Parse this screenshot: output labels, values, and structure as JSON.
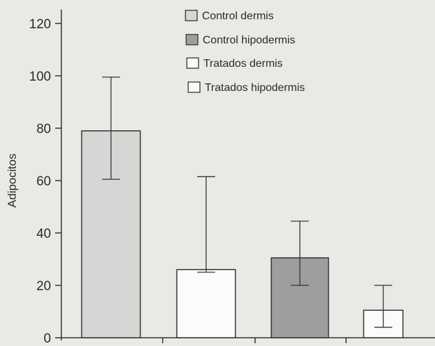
{
  "chart_data": {
    "type": "bar",
    "ylabel": "Adipocitos",
    "ylim": [
      0,
      120
    ],
    "yticks": [
      0,
      20,
      40,
      60,
      80,
      100,
      120
    ],
    "grid": false,
    "legend_position": "top-right",
    "series": [
      {
        "name": "Control dermis",
        "value": 79,
        "error_low": 60.5,
        "error_high": 99.5,
        "fill": "#d6d6d4"
      },
      {
        "name": "Tratados dermis",
        "value": 26,
        "error_low": 25,
        "error_high": 61.5,
        "fill": "#fbfbfb"
      },
      {
        "name": "Control hipodermis",
        "value": 30.5,
        "error_low": 20,
        "error_high": 44.5,
        "fill": "#9e9e9e"
      },
      {
        "name": "Tratados hipodermis",
        "value": 10.5,
        "error_low": 4,
        "error_high": 20,
        "fill": "#fbfbfb"
      }
    ],
    "legend": [
      {
        "label": "Control dermis",
        "fill": "#d6d6d4"
      },
      {
        "label": "Control hipodermis",
        "fill": "#9e9e9e"
      },
      {
        "label": "Tratados dermis",
        "fill": "#fbfbfb"
      },
      {
        "label": "Tratados hipodermis",
        "fill": "#fbfbfb"
      }
    ]
  }
}
